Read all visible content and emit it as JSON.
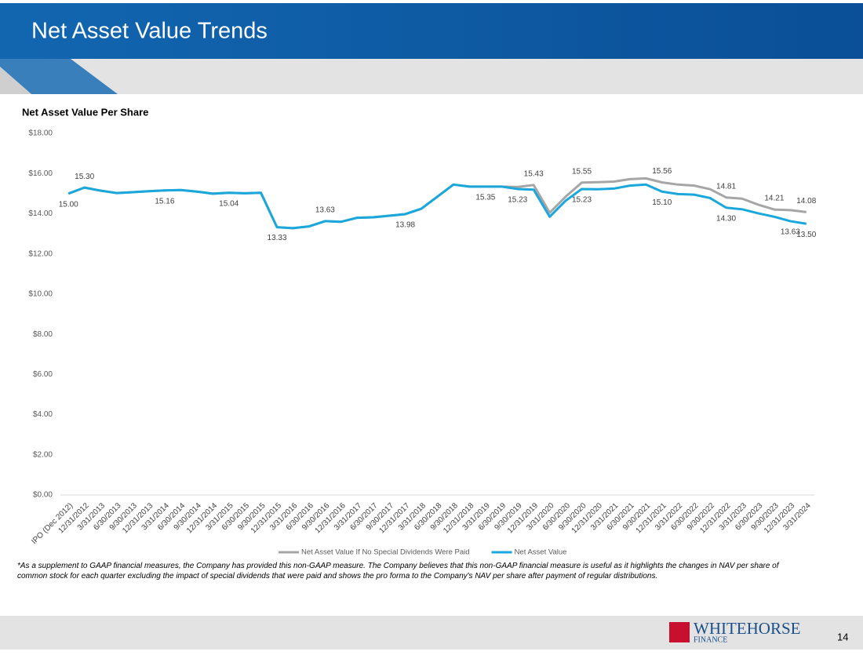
{
  "header": {
    "title": "Net Asset Value Trends"
  },
  "chart_data": {
    "type": "line",
    "title": "Net Asset Value Per Share",
    "categories": [
      "IPO (Dec 2012)",
      "12/31/2012",
      "3/31/2013",
      "6/30/2013",
      "9/30/2013",
      "12/31/2013",
      "3/31/2014",
      "6/30/2014",
      "9/30/2014",
      "12/31/2014",
      "3/31/2015",
      "6/30/2015",
      "9/30/2015",
      "12/31/2015",
      "3/31/2016",
      "6/30/2016",
      "9/30/2016",
      "12/31/2016",
      "3/31/2017",
      "6/30/2017",
      "9/30/2017",
      "12/31/2017",
      "3/31/2018",
      "6/30/2018",
      "9/30/2018",
      "12/31/2018",
      "3/31/2019",
      "6/30/2019",
      "9/30/2019",
      "12/31/2019",
      "3/31/2020",
      "6/30/2020",
      "9/30/2020",
      "12/31/2020",
      "3/31/2021",
      "6/30/2021",
      "9/30/2021",
      "12/31/2021",
      "3/31/2022",
      "6/30/2022",
      "9/30/2022",
      "12/31/2022",
      "3/31/2023",
      "6/30/2023",
      "9/30/2023",
      "12/31/2023",
      "3/31/2024"
    ],
    "series": [
      {
        "name": "Net Asset Value If No Special Dividends Were Paid",
        "color": "#a6a6a6",
        "values": [
          15.0,
          15.3,
          15.15,
          15.03,
          15.07,
          15.12,
          15.16,
          15.18,
          15.1,
          15.0,
          15.04,
          15.02,
          15.04,
          13.33,
          13.28,
          13.37,
          13.63,
          13.6,
          13.8,
          13.82,
          13.9,
          13.98,
          14.25,
          14.85,
          15.45,
          15.35,
          15.35,
          15.35,
          15.33,
          15.43,
          14.05,
          14.85,
          15.55,
          15.57,
          15.6,
          15.72,
          15.76,
          15.56,
          15.45,
          15.4,
          15.22,
          14.81,
          14.75,
          14.45,
          14.21,
          14.18,
          14.08
        ],
        "value_labels": [
          null,
          null,
          null,
          null,
          null,
          null,
          null,
          null,
          null,
          null,
          null,
          null,
          null,
          null,
          null,
          null,
          null,
          null,
          null,
          null,
          null,
          null,
          null,
          null,
          null,
          null,
          null,
          null,
          null,
          "15.43",
          null,
          null,
          "15.55",
          null,
          null,
          null,
          null,
          "15.56",
          null,
          null,
          null,
          "14.81",
          null,
          null,
          "14.21",
          null,
          "14.08"
        ]
      },
      {
        "name": "Net Asset Value",
        "color": "#1aa8dc",
        "values": [
          15.0,
          15.3,
          15.15,
          15.03,
          15.07,
          15.12,
          15.16,
          15.18,
          15.1,
          15.0,
          15.04,
          15.02,
          15.04,
          13.33,
          13.28,
          13.37,
          13.63,
          13.6,
          13.8,
          13.82,
          13.9,
          13.98,
          14.25,
          14.85,
          15.45,
          15.35,
          15.35,
          15.35,
          15.23,
          15.2,
          13.85,
          14.65,
          15.23,
          15.22,
          15.25,
          15.4,
          15.45,
          15.1,
          14.98,
          14.95,
          14.78,
          14.3,
          14.22,
          14.02,
          13.85,
          13.63,
          13.5
        ],
        "value_labels": [
          "15.00",
          "15.30",
          null,
          null,
          null,
          null,
          "15.16",
          null,
          null,
          null,
          "15.04",
          null,
          null,
          "13.33",
          null,
          null,
          "13.63",
          null,
          null,
          null,
          null,
          "13.98",
          null,
          null,
          null,
          null,
          "15.35",
          null,
          "15.23",
          null,
          null,
          null,
          "15.23",
          null,
          null,
          null,
          null,
          "15.10",
          null,
          null,
          null,
          "14.30",
          null,
          null,
          null,
          "13.63",
          "13.50"
        ]
      }
    ],
    "ylim": [
      0,
      18
    ],
    "yticks": [
      {
        "value": 0,
        "label": "$0.00"
      },
      {
        "value": 2,
        "label": "$2.00"
      },
      {
        "value": 4,
        "label": "$4.00"
      },
      {
        "value": 6,
        "label": "$6.00"
      },
      {
        "value": 8,
        "label": "$8.00"
      },
      {
        "value": 10,
        "label": "$10.00"
      },
      {
        "value": 12,
        "label": "$12.00"
      },
      {
        "value": 14,
        "label": "$14.00"
      },
      {
        "value": 16,
        "label": "$16.00"
      },
      {
        "value": 18,
        "label": "$18.00"
      }
    ],
    "grid": false,
    "legend": "bottom"
  },
  "footnote": "*As a supplement to GAAP financial measures, the Company has provided this non-GAAP measure. The Company believes that this non-GAAP financial measure is useful as it highlights the changes in NAV per share of common stock for each quarter excluding the impact of special dividends that were paid and shows the pro forma to the Company's NAV per share after payment of regular distributions.",
  "logo": {
    "name": "WHITEHORSE",
    "sub": "FINANCE"
  },
  "page_number": "14"
}
